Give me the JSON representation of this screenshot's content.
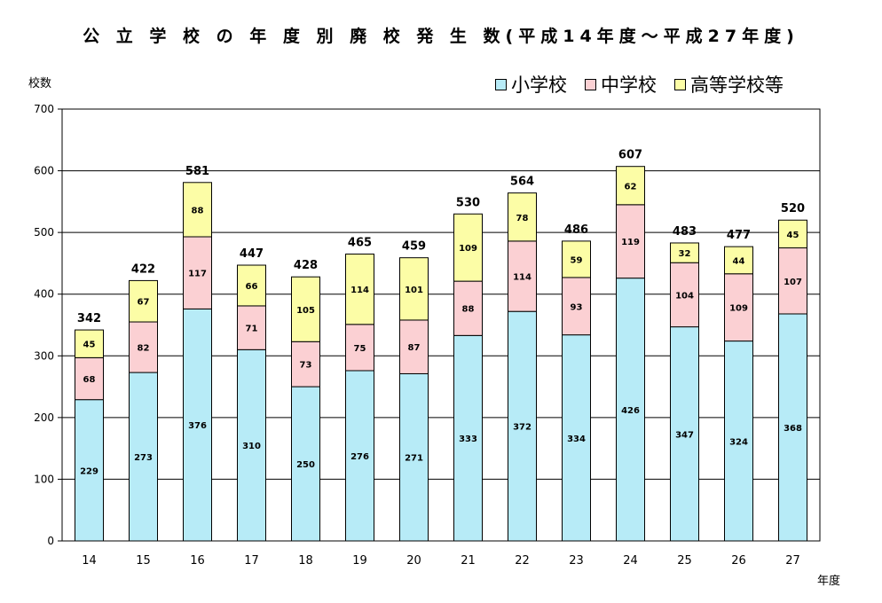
{
  "chart_data": {
    "type": "bar",
    "stacked": true,
    "title": "公 立 学 校 の 年 度 別 廃 校 発 生 数(平成14年度～平成27年度)",
    "ylabel": "校数",
    "xlabel": "年度",
    "ylim": [
      0,
      700
    ],
    "yticks": [
      0,
      100,
      200,
      300,
      400,
      500,
      600,
      700
    ],
    "grid": true,
    "legend_position": "top-right",
    "categories": [
      "14",
      "15",
      "16",
      "17",
      "18",
      "19",
      "20",
      "21",
      "22",
      "23",
      "24",
      "25",
      "26",
      "27"
    ],
    "series": [
      {
        "name": "小学校",
        "color": "#b7ebf7",
        "values": [
          229,
          273,
          376,
          310,
          250,
          276,
          271,
          333,
          372,
          334,
          426,
          347,
          324,
          368
        ]
      },
      {
        "name": "中学校",
        "color": "#fbd0d3",
        "values": [
          68,
          82,
          117,
          71,
          73,
          75,
          87,
          88,
          114,
          93,
          119,
          104,
          109,
          107
        ]
      },
      {
        "name": "高等学校等",
        "color": "#fcfda6",
        "values": [
          45,
          67,
          88,
          66,
          105,
          114,
          101,
          109,
          78,
          59,
          62,
          32,
          44,
          45
        ]
      }
    ],
    "totals": [
      342,
      422,
      581,
      447,
      428,
      465,
      459,
      530,
      564,
      486,
      607,
      483,
      477,
      520
    ]
  }
}
